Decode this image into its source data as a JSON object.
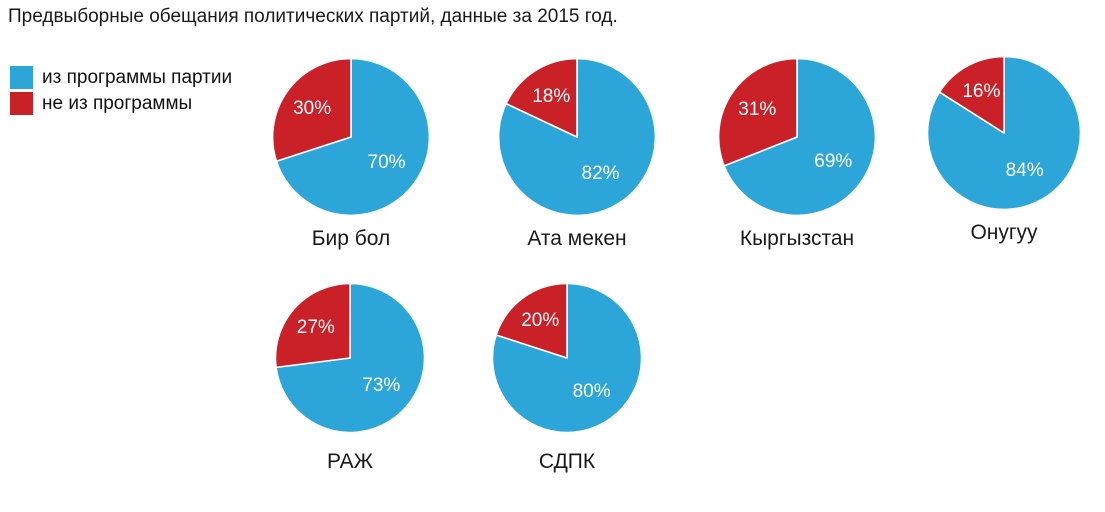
{
  "header": {
    "title": "Предвыборные обещания политических партий, данные за 2015 год."
  },
  "legend": {
    "items": [
      {
        "label": "из программы партии",
        "color": "#2CA6D8"
      },
      {
        "label": "не из программы",
        "color": "#CA2128"
      }
    ]
  },
  "chart_data": {
    "type": "pie",
    "title": "Предвыборные обещания политических партий, данные за 2015 год.",
    "series_labels": [
      "из программы партии",
      "не из программы"
    ],
    "colors": [
      "#2CA6D8",
      "#CA2128"
    ],
    "value_suffix": "%",
    "start_angle_deg": 0,
    "direction": "clockwise",
    "legend_position": "top-left",
    "slice_label_color": "#ffffff",
    "pies": [
      {
        "name": "Бир бол",
        "values": [
          70,
          30
        ]
      },
      {
        "name": "Ата мекен",
        "values": [
          82,
          18
        ]
      },
      {
        "name": "Кыргызстан",
        "values": [
          69,
          31
        ]
      },
      {
        "name": "Онугуу",
        "values": [
          84,
          16
        ]
      },
      {
        "name": "РАЖ",
        "values": [
          73,
          27
        ]
      },
      {
        "name": "СДПК",
        "values": [
          80,
          20
        ]
      }
    ]
  }
}
